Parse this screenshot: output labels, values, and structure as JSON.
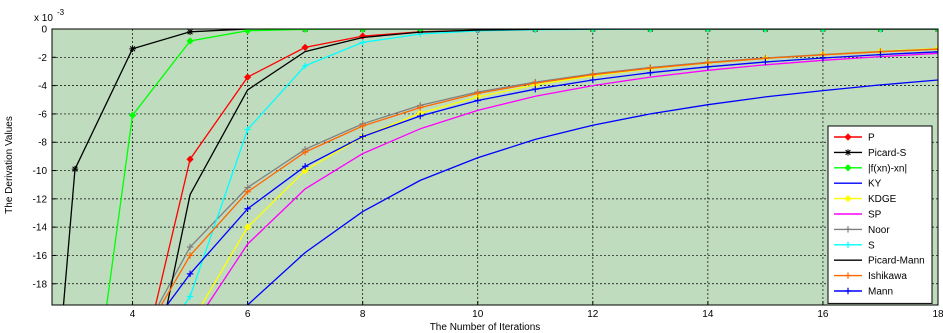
{
  "chart_data": {
    "type": "line",
    "title": "",
    "xlabel": "The Number of Iterations",
    "ylabel": "The Derivation Values",
    "y_multiplier": "x 10",
    "y_multiplier_exp": "-3",
    "xlim": [
      2.6,
      18
    ],
    "ylim": [
      -19.5,
      0
    ],
    "xticks": [
      4,
      6,
      8,
      10,
      12,
      14,
      16,
      18
    ],
    "yticks": [
      0,
      -2,
      -4,
      -6,
      -8,
      -10,
      -12,
      -14,
      -16,
      -18
    ],
    "grid": true,
    "legend_position": "bottom-right",
    "plot_background": "#bfdcbf",
    "series": [
      {
        "name": "P",
        "color": "#ff0000",
        "marker": "diamond",
        "x": [
          4.4,
          5,
          6,
          7,
          8,
          9,
          10,
          11,
          12,
          13,
          14,
          15,
          16,
          17,
          18
        ],
        "y": [
          -19.5,
          -9.2,
          -3.4,
          -1.3,
          -0.5,
          -0.2,
          -0.08,
          -0.03,
          -0.01,
          0,
          0,
          0,
          0,
          0,
          0
        ]
      },
      {
        "name": "Picard-S",
        "color": "#000000",
        "marker": "star",
        "x": [
          2.8,
          3,
          4,
          5,
          6,
          7,
          8,
          9,
          10,
          11,
          12,
          13,
          14,
          15,
          16,
          17,
          18
        ],
        "y": [
          -19.5,
          -9.9,
          -1.4,
          -0.2,
          0,
          0,
          0,
          0,
          0,
          0,
          0,
          0,
          0,
          0,
          0,
          0,
          0
        ]
      },
      {
        "name": "|f(xn)-xn|",
        "color": "#00ff00",
        "marker": "diamond",
        "x": [
          3.55,
          4,
          5,
          6,
          7,
          8,
          9,
          10,
          11,
          12,
          13,
          14,
          15,
          16,
          17,
          18
        ],
        "y": [
          -19.5,
          -6.1,
          -0.85,
          -0.12,
          -0.02,
          0,
          0,
          0,
          0,
          0,
          0,
          0,
          0,
          0,
          0,
          0
        ]
      },
      {
        "name": "KY",
        "color": "#0000ff",
        "marker": "none",
        "x": [
          6,
          7,
          8,
          9,
          10,
          11,
          12,
          13,
          14,
          15,
          16,
          17,
          18
        ],
        "y": [
          -19.5,
          -15.8,
          -12.9,
          -10.7,
          -9.1,
          -7.8,
          -6.8,
          -6.0,
          -5.35,
          -4.8,
          -4.35,
          -3.95,
          -3.6
        ]
      },
      {
        "name": "KDGE",
        "color": "#ffff00",
        "marker": "diamond",
        "x": [
          5.2,
          6,
          7,
          8,
          9,
          10,
          11,
          12,
          13,
          14,
          15,
          16,
          17,
          18
        ],
        "y": [
          -19.5,
          -14.0,
          -10.0,
          -7.6,
          -5.95,
          -4.8,
          -3.95,
          -3.3,
          -2.8,
          -2.4,
          -2.07,
          -1.8,
          -1.57,
          -1.38
        ]
      },
      {
        "name": "SP",
        "color": "#ff00ff",
        "marker": "none",
        "x": [
          5.3,
          6,
          7,
          8,
          9,
          10,
          11,
          12,
          13,
          14,
          15,
          16,
          17,
          18
        ],
        "y": [
          -19.5,
          -15.2,
          -11.3,
          -8.8,
          -7.05,
          -5.75,
          -4.75,
          -4.0,
          -3.4,
          -2.92,
          -2.53,
          -2.21,
          -1.95,
          -1.72
        ]
      },
      {
        "name": "Noor",
        "color": "#808080",
        "marker": "plus",
        "x": [
          4.45,
          5,
          6,
          7,
          8,
          9,
          10,
          11,
          12,
          13,
          14,
          15,
          16,
          17,
          18
        ],
        "y": [
          -19.5,
          -15.4,
          -11.2,
          -8.5,
          -6.7,
          -5.4,
          -4.45,
          -3.75,
          -3.17,
          -2.72,
          -2.35,
          -2.05,
          -1.8,
          -1.59,
          -1.41
        ]
      },
      {
        "name": "S",
        "color": "#00ffff",
        "marker": "plus",
        "x": [
          4.9,
          5,
          6,
          7,
          8,
          9,
          10,
          11,
          12,
          13,
          14,
          15,
          16,
          17,
          18
        ],
        "y": [
          -19.5,
          -18.9,
          -7.1,
          -2.6,
          -0.95,
          -0.35,
          -0.13,
          -0.05,
          -0.02,
          0,
          0,
          0,
          0,
          0,
          0
        ]
      },
      {
        "name": "Picard-Mann",
        "color": "#000000",
        "marker": "none",
        "x": [
          4.6,
          5,
          6,
          7,
          8,
          9,
          10,
          11,
          12,
          13,
          14,
          15,
          16,
          17,
          18
        ],
        "y": [
          -19.5,
          -11.7,
          -4.3,
          -1.6,
          -0.6,
          -0.22,
          -0.08,
          -0.03,
          -0.01,
          0,
          0,
          0,
          0,
          0,
          0
        ]
      },
      {
        "name": "Ishikawa",
        "color": "#ff6600",
        "marker": "plus",
        "x": [
          4.5,
          5,
          6,
          7,
          8,
          9,
          10,
          11,
          12,
          13,
          14,
          15,
          16,
          17,
          18
        ],
        "y": [
          -19.5,
          -16.0,
          -11.5,
          -8.7,
          -6.85,
          -5.55,
          -4.55,
          -3.82,
          -3.23,
          -2.77,
          -2.39,
          -2.08,
          -1.83,
          -1.61,
          -1.43
        ]
      },
      {
        "name": "Mann",
        "color": "#0000ff",
        "marker": "plus",
        "x": [
          4.6,
          5,
          6,
          7,
          8,
          9,
          10,
          11,
          12,
          13,
          14,
          15,
          16,
          17,
          18
        ],
        "y": [
          -19.5,
          -17.3,
          -12.7,
          -9.7,
          -7.6,
          -6.15,
          -5.05,
          -4.25,
          -3.6,
          -3.09,
          -2.67,
          -2.33,
          -2.05,
          -1.81,
          -1.61
        ]
      }
    ]
  }
}
